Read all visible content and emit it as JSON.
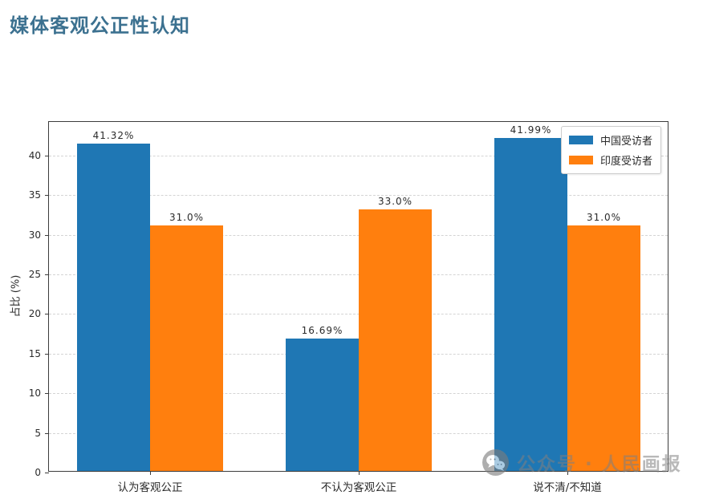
{
  "page_title": "媒体客观公正性认知",
  "title_color": "#3c7190",
  "chart_data": {
    "type": "bar",
    "title": "媒体客观公正性认知",
    "categories": [
      "认为客观公正",
      "不认为客观公正",
      "说不清/不知道"
    ],
    "series": [
      {
        "name": "中国受访者",
        "color": "#1f77b4",
        "values": [
          41.32,
          16.69,
          41.99
        ],
        "labels": [
          "41.32%",
          "16.69%",
          "41.99%"
        ]
      },
      {
        "name": "印度受访者",
        "color": "#ff7f0e",
        "values": [
          31.0,
          33.0,
          31.0
        ],
        "labels": [
          "31.0%",
          "33.0%",
          "31.0%"
        ]
      }
    ],
    "xlabel": "",
    "ylabel": "占比 (%)",
    "yticks": [
      0,
      5,
      10,
      15,
      20,
      25,
      30,
      35,
      40
    ],
    "ylim": [
      0,
      44.25
    ],
    "grid": true,
    "grid_style": "dashed",
    "legend_position": "upper right"
  },
  "watermark": {
    "icon": "wechat-icon",
    "text": "公众号 · 人民画报"
  }
}
